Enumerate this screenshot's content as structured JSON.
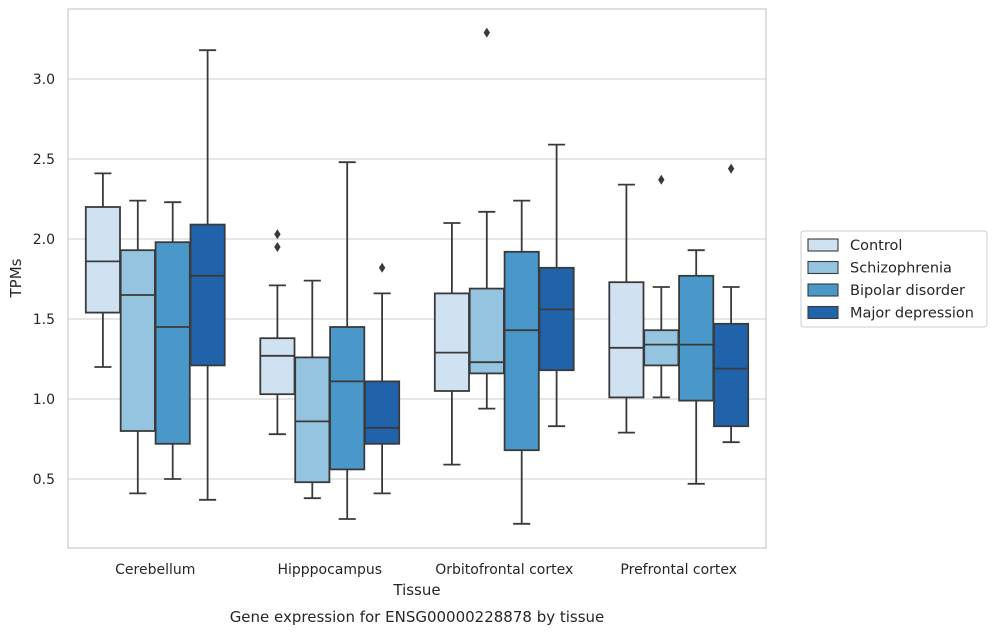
{
  "chart_data": {
    "type": "box",
    "title": "",
    "caption": "Gene expression for ENSG00000228878 by tissue",
    "xlabel": "Tissue",
    "ylabel": "TPMs",
    "ylim": [
      0.05,
      3.45
    ],
    "yticks": [
      0.5,
      1.0,
      1.5,
      2.0,
      2.5,
      3.0
    ],
    "ytick_labels": [
      "0.5",
      "1.0",
      "1.5",
      "2.0",
      "2.5",
      "3.0"
    ],
    "grid": "horizontal",
    "legend_position": "right",
    "categories": [
      "Cerebellum",
      "Hipppocampus",
      "Orbitofrontal cortex",
      "Prefrontal cortex"
    ],
    "series": [
      {
        "name": "Control",
        "color": "#d0e1f2",
        "boxes": [
          {
            "q1": 1.54,
            "median": 1.86,
            "q3": 2.2,
            "whisker_low": 1.2,
            "whisker_high": 2.41,
            "outliers": []
          },
          {
            "q1": 1.03,
            "median": 1.27,
            "q3": 1.38,
            "whisker_low": 0.78,
            "whisker_high": 1.71,
            "outliers": [
              1.95,
              2.03
            ]
          },
          {
            "q1": 1.05,
            "median": 1.29,
            "q3": 1.66,
            "whisker_low": 0.59,
            "whisker_high": 2.1,
            "outliers": []
          },
          {
            "q1": 1.01,
            "median": 1.32,
            "q3": 1.73,
            "whisker_low": 0.79,
            "whisker_high": 2.34,
            "outliers": []
          }
        ]
      },
      {
        "name": "Schizophrenia",
        "color": "#94c4df",
        "boxes": [
          {
            "q1": 0.8,
            "median": 1.65,
            "q3": 1.93,
            "whisker_low": 0.41,
            "whisker_high": 2.24,
            "outliers": []
          },
          {
            "q1": 0.48,
            "median": 0.86,
            "q3": 1.26,
            "whisker_low": 0.38,
            "whisker_high": 1.74,
            "outliers": []
          },
          {
            "q1": 1.16,
            "median": 1.23,
            "q3": 1.69,
            "whisker_low": 0.94,
            "whisker_high": 2.17,
            "outliers": [
              3.29
            ]
          },
          {
            "q1": 1.21,
            "median": 1.34,
            "q3": 1.43,
            "whisker_low": 1.01,
            "whisker_high": 1.7,
            "outliers": [
              2.37
            ]
          }
        ]
      },
      {
        "name": "Bipolar disorder",
        "color": "#4a98c9",
        "boxes": [
          {
            "q1": 0.72,
            "median": 1.45,
            "q3": 1.98,
            "whisker_low": 0.5,
            "whisker_high": 2.23,
            "outliers": []
          },
          {
            "q1": 0.56,
            "median": 1.11,
            "q3": 1.45,
            "whisker_low": 0.25,
            "whisker_high": 2.48,
            "outliers": []
          },
          {
            "q1": 0.68,
            "median": 1.43,
            "q3": 1.92,
            "whisker_low": 0.22,
            "whisker_high": 2.24,
            "outliers": []
          },
          {
            "q1": 0.99,
            "median": 1.34,
            "q3": 1.77,
            "whisker_low": 0.47,
            "whisker_high": 1.93,
            "outliers": []
          }
        ]
      },
      {
        "name": "Major depression",
        "color": "#2163aa",
        "boxes": [
          {
            "q1": 1.21,
            "median": 1.77,
            "q3": 2.09,
            "whisker_low": 0.37,
            "whisker_high": 3.18,
            "outliers": []
          },
          {
            "q1": 0.72,
            "median": 0.82,
            "q3": 1.11,
            "whisker_low": 0.41,
            "whisker_high": 1.66,
            "outliers": [
              1.82
            ]
          },
          {
            "q1": 1.18,
            "median": 1.56,
            "q3": 1.82,
            "whisker_low": 0.83,
            "whisker_high": 2.59,
            "outliers": []
          },
          {
            "q1": 0.83,
            "median": 1.19,
            "q3": 1.47,
            "whisker_low": 0.73,
            "whisker_high": 1.7,
            "outliers": [
              2.44
            ]
          }
        ]
      }
    ]
  }
}
